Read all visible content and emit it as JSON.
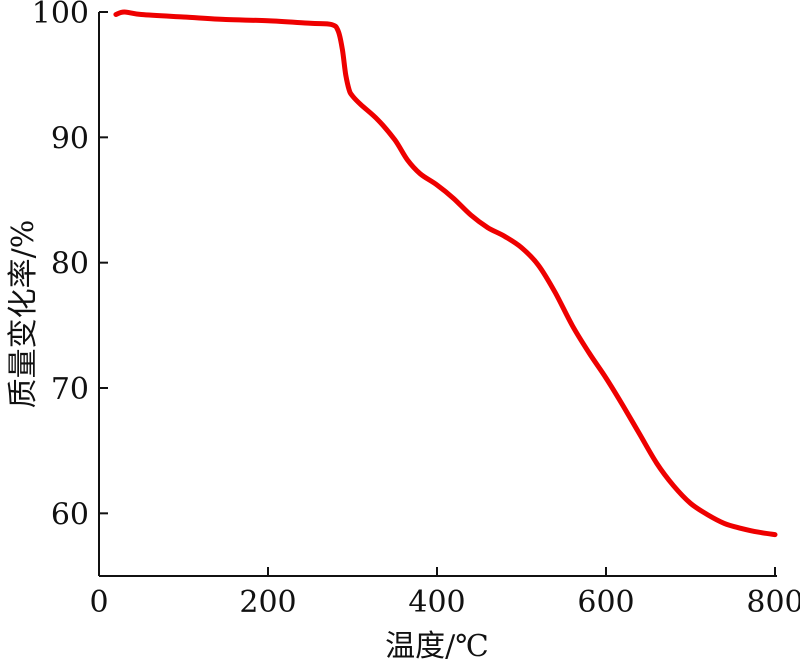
{
  "chart_data": {
    "type": "line",
    "xlabel": "温度/℃",
    "ylabel": "质量变化率/%",
    "xlim": [
      0,
      800
    ],
    "ylim": [
      55,
      100
    ],
    "xticks": [
      0,
      200,
      400,
      600,
      800
    ],
    "yticks": [
      60,
      70,
      80,
      90,
      100
    ],
    "xtick_labels": [
      "0",
      "200",
      "400",
      "600",
      "800"
    ],
    "ytick_labels": [
      "60",
      "70",
      "80",
      "90",
      "100"
    ],
    "grid": false,
    "colors": {
      "series": "#ee0000",
      "axis": "#111111"
    },
    "series": [
      {
        "x": [
          20,
          30,
          50,
          100,
          150,
          200,
          250,
          275,
          283,
          288,
          292,
          296,
          300,
          310,
          330,
          350,
          365,
          380,
          400,
          420,
          440,
          460,
          480,
          500,
          520,
          540,
          560,
          580,
          600,
          620,
          640,
          660,
          680,
          700,
          720,
          740,
          760,
          780,
          800
        ],
        "y": [
          99.8,
          100.0,
          99.8,
          99.6,
          99.4,
          99.3,
          99.1,
          99.0,
          98.5,
          97.0,
          95.0,
          93.8,
          93.3,
          92.6,
          91.4,
          89.8,
          88.2,
          87.1,
          86.2,
          85.1,
          83.8,
          82.8,
          82.1,
          81.2,
          79.8,
          77.6,
          75.0,
          72.8,
          70.8,
          68.6,
          66.3,
          64.0,
          62.2,
          60.8,
          59.9,
          59.2,
          58.8,
          58.5,
          58.3
        ]
      }
    ]
  }
}
